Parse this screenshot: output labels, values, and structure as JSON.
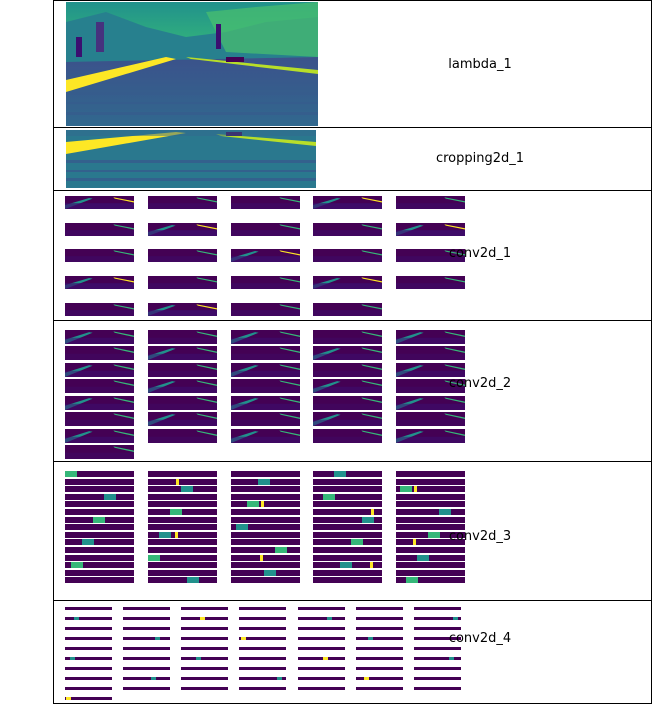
{
  "layers": [
    {
      "name": "lambda_1"
    },
    {
      "name": "cropping2d_1"
    },
    {
      "name": "conv2d_1"
    },
    {
      "name": "conv2d_2"
    },
    {
      "name": "conv2d_3"
    },
    {
      "name": "conv2d_4"
    }
  ],
  "colors": {
    "viridis_dark": "#440154",
    "viridis_purple": "#3b0f70",
    "viridis_blue": "#31688e",
    "viridis_teal": "#21918c",
    "viridis_green": "#35b779",
    "viridis_yellow": "#fde725",
    "border": "#000000"
  }
}
